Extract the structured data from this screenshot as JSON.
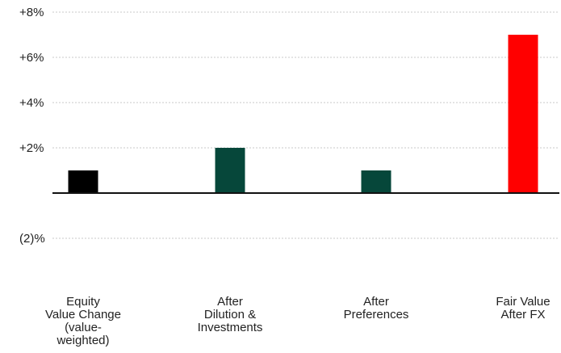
{
  "chart_data": {
    "type": "bar",
    "categories": [
      [
        "Equity",
        "Value Change",
        "(value-",
        "weighted)"
      ],
      [
        "After",
        "Dilution &",
        "Investments"
      ],
      [
        "After",
        "Preferences"
      ],
      [
        "Fair Value",
        "After FX"
      ]
    ],
    "values": [
      1,
      2,
      1,
      7
    ],
    "bar_colors": [
      "#000000",
      "#06473a",
      "#06473a",
      "#ff0000"
    ],
    "ylim": [
      -3,
      8
    ],
    "yticks": [
      {
        "value": 8,
        "label": "+8%"
      },
      {
        "value": 6,
        "label": "+6%"
      },
      {
        "value": 4,
        "label": "+4%"
      },
      {
        "value": 2,
        "label": "+2%"
      },
      {
        "value": -2,
        "label": "(2)%"
      }
    ],
    "grid": true,
    "title": "",
    "xlabel": "",
    "ylabel": ""
  }
}
